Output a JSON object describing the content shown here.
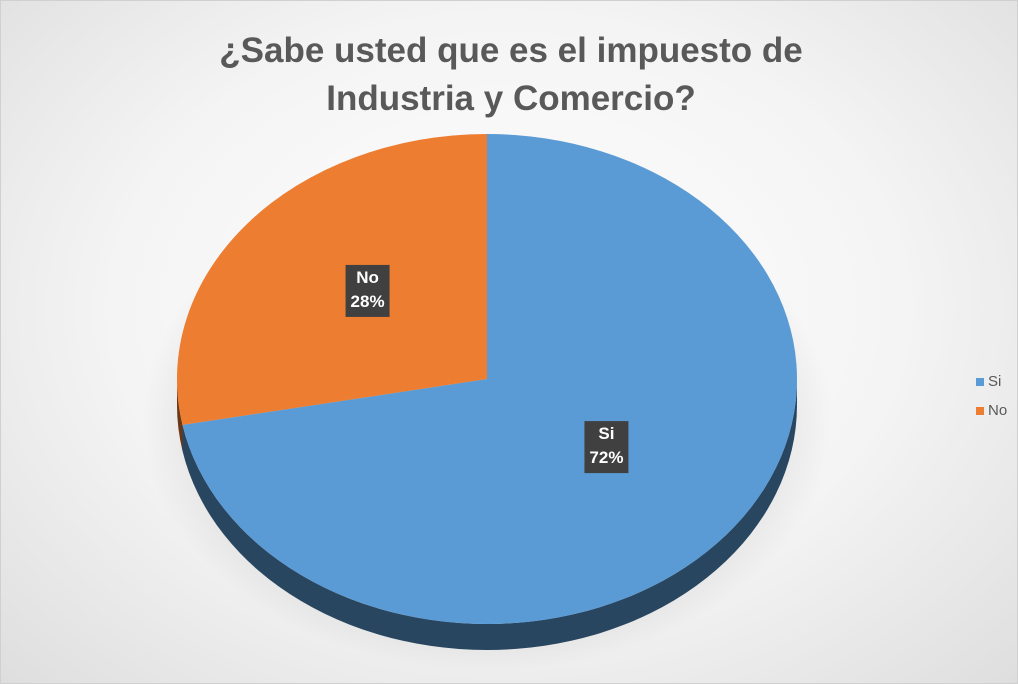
{
  "chart_data": {
    "type": "pie",
    "title": "¿Sabe usted que es el impuesto de Industria y Comercio?",
    "categories": [
      "Si",
      "No"
    ],
    "values": [
      72,
      28
    ],
    "value_labels": [
      "72%",
      "28%"
    ],
    "colors": [
      "#5b9bd5",
      "#ed7d31"
    ],
    "legend": "right"
  }
}
